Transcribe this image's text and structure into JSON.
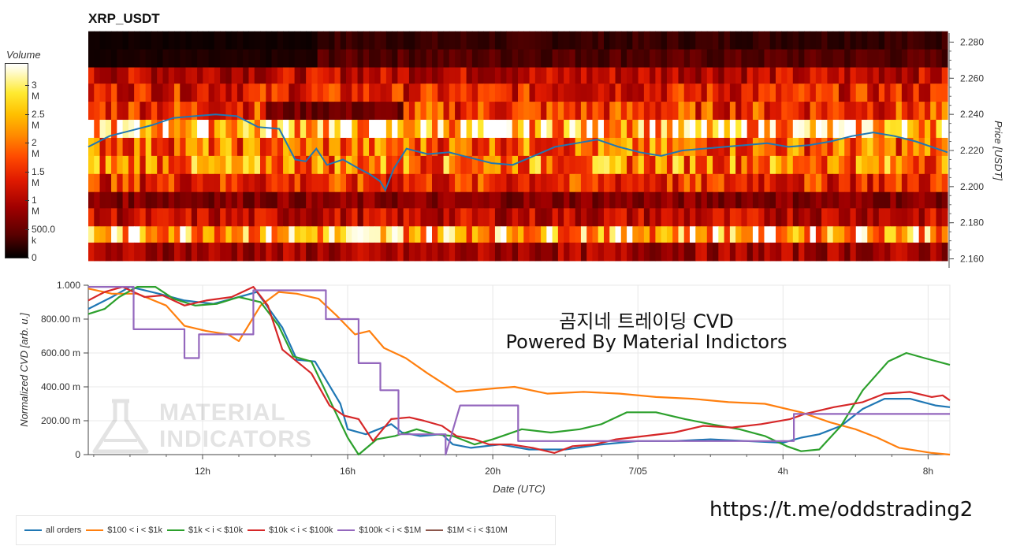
{
  "page": {
    "title": "XRP_USDT",
    "annotation_line1": "곰지네 트레이딩 CVD",
    "annotation_line2": "Powered By Material Indictors",
    "url": "https://t.me/oddstrading2",
    "watermark_line1": "MATERIAL",
    "watermark_line2": "INDICATORS"
  },
  "colorbar": {
    "title": "Volume",
    "ticks": [
      "3 M",
      "2.5 M",
      "2 M",
      "1.5 M",
      "1 M",
      "500.0 k",
      "0"
    ],
    "tick_values": [
      3000000,
      2500000,
      2000000,
      1500000,
      1000000,
      500000,
      0
    ],
    "max": 3400000
  },
  "chart_data": [
    {
      "type": "heatmap",
      "title": "XRP_USDT",
      "ylabel": "Price [USDT]",
      "yticks": [
        "2.280",
        "2.260",
        "2.240",
        "2.220",
        "2.200",
        "2.180",
        "2.160"
      ],
      "ylim": [
        2.155,
        2.285
      ],
      "price_levels": [
        2.281,
        2.271,
        2.261,
        2.252,
        2.242,
        2.232,
        2.222,
        2.212,
        2.202,
        2.192,
        2.183,
        2.173,
        2.164
      ],
      "row_profile_volume": [
        250000,
        400000,
        1100000,
        1400000,
        1600000,
        2700000,
        1900000,
        2100000,
        1500000,
        700000,
        1100000,
        2600000,
        900000
      ],
      "price_line": {
        "color": "#1f77b4",
        "points": [
          [
            0,
            2.222
          ],
          [
            2,
            2.228
          ],
          [
            4,
            2.231
          ],
          [
            6,
            2.234
          ],
          [
            8,
            2.238
          ],
          [
            10,
            2.239
          ],
          [
            12,
            2.24
          ],
          [
            14,
            2.239
          ],
          [
            16,
            2.233
          ],
          [
            18,
            2.232
          ],
          [
            19.5,
            2.215
          ],
          [
            20.5,
            2.214
          ],
          [
            21.5,
            2.221
          ],
          [
            22.5,
            2.212
          ],
          [
            24,
            2.215
          ],
          [
            25.5,
            2.21
          ],
          [
            26.5,
            2.207
          ],
          [
            27.5,
            2.203
          ],
          [
            28,
            2.198
          ],
          [
            28.8,
            2.21
          ],
          [
            30,
            2.221
          ],
          [
            32,
            2.218
          ],
          [
            34,
            2.219
          ],
          [
            36,
            2.216
          ],
          [
            38,
            2.213
          ],
          [
            40,
            2.212
          ],
          [
            42,
            2.217
          ],
          [
            44,
            2.222
          ],
          [
            46,
            2.224
          ],
          [
            48,
            2.226
          ],
          [
            50,
            2.222
          ],
          [
            52,
            2.219
          ],
          [
            54,
            2.217
          ],
          [
            56,
            2.22
          ],
          [
            58,
            2.221
          ],
          [
            60,
            2.222
          ],
          [
            62,
            2.223
          ],
          [
            64,
            2.224
          ],
          [
            66,
            2.222
          ],
          [
            68,
            2.223
          ],
          [
            70,
            2.225
          ],
          [
            72,
            2.228
          ],
          [
            74,
            2.23
          ],
          [
            76,
            2.228
          ],
          [
            78,
            2.225
          ],
          [
            80,
            2.221
          ],
          [
            81,
            2.219
          ]
        ]
      }
    },
    {
      "type": "line",
      "xlabel": "Date (UTC)",
      "ylabel": "Normalized CVD [arb. u.]",
      "xticks": [
        "12h",
        "16h",
        "20h",
        "7/05",
        "4h",
        "8h"
      ],
      "xtick_hours": [
        12,
        16,
        20,
        24,
        28,
        32
      ],
      "xlim_hours": [
        8.85,
        32.6
      ],
      "yticks": [
        "1.000",
        "800.00 m",
        "600.00 m",
        "400.00 m",
        "200.00 m",
        "0"
      ],
      "ytick_values": [
        1.0,
        0.8,
        0.6,
        0.4,
        0.2,
        0.0
      ],
      "ylim": [
        0,
        1
      ],
      "series": [
        {
          "name": "all orders",
          "color": "#1f77b4",
          "points": [
            [
              8.85,
              0.86
            ],
            [
              9.5,
              0.93
            ],
            [
              10,
              0.99
            ],
            [
              10.8,
              0.95
            ],
            [
              11.5,
              0.91
            ],
            [
              12.3,
              0.89
            ],
            [
              13,
              0.93
            ],
            [
              13.5,
              0.96
            ],
            [
              14.2,
              0.75
            ],
            [
              14.6,
              0.56
            ],
            [
              15.1,
              0.55
            ],
            [
              15.8,
              0.3
            ],
            [
              16,
              0.15
            ],
            [
              16.5,
              0.12
            ],
            [
              17.2,
              0.18
            ],
            [
              17.5,
              0.13
            ],
            [
              18,
              0.11
            ],
            [
              18.6,
              0.12
            ],
            [
              18.9,
              0.06
            ],
            [
              19.4,
              0.04
            ],
            [
              20.2,
              0.06
            ],
            [
              21,
              0.03
            ],
            [
              22,
              0.03
            ],
            [
              23,
              0.06
            ],
            [
              24,
              0.08
            ],
            [
              25,
              0.08
            ],
            [
              26,
              0.09
            ],
            [
              27,
              0.08
            ],
            [
              28,
              0.07
            ],
            [
              28.5,
              0.1
            ],
            [
              29,
              0.12
            ],
            [
              29.6,
              0.17
            ],
            [
              30.2,
              0.27
            ],
            [
              30.8,
              0.33
            ],
            [
              31.5,
              0.33
            ],
            [
              32.2,
              0.29
            ],
            [
              32.6,
              0.28
            ]
          ]
        },
        {
          "name": "$100 < i < $1k",
          "color": "#ff7f0e",
          "points": [
            [
              8.85,
              0.98
            ],
            [
              9.5,
              0.95
            ],
            [
              10.2,
              0.95
            ],
            [
              11,
              0.88
            ],
            [
              11.5,
              0.76
            ],
            [
              12.1,
              0.73
            ],
            [
              12.7,
              0.71
            ],
            [
              13,
              0.67
            ],
            [
              13.6,
              0.88
            ],
            [
              14.1,
              0.96
            ],
            [
              14.6,
              0.95
            ],
            [
              15.2,
              0.92
            ],
            [
              15.7,
              0.82
            ],
            [
              16.2,
              0.71
            ],
            [
              16.6,
              0.73
            ],
            [
              17,
              0.63
            ],
            [
              17.6,
              0.57
            ],
            [
              18.2,
              0.48
            ],
            [
              19,
              0.37
            ],
            [
              20,
              0.39
            ],
            [
              20.6,
              0.4
            ],
            [
              21.5,
              0.36
            ],
            [
              22.5,
              0.37
            ],
            [
              23.5,
              0.36
            ],
            [
              24.5,
              0.34
            ],
            [
              25.5,
              0.33
            ],
            [
              26.5,
              0.31
            ],
            [
              27.5,
              0.3
            ],
            [
              28.5,
              0.25
            ],
            [
              29.3,
              0.19
            ],
            [
              30,
              0.15
            ],
            [
              30.6,
              0.1
            ],
            [
              31.2,
              0.04
            ],
            [
              32.1,
              0.01
            ],
            [
              32.6,
              0.0
            ]
          ]
        },
        {
          "name": "$1k < i < $10k",
          "color": "#2ca02c",
          "points": [
            [
              8.85,
              0.83
            ],
            [
              9.3,
              0.86
            ],
            [
              9.7,
              0.93
            ],
            [
              10.2,
              0.99
            ],
            [
              10.7,
              0.99
            ],
            [
              11.2,
              0.92
            ],
            [
              11.8,
              0.88
            ],
            [
              12.4,
              0.89
            ],
            [
              13,
              0.93
            ],
            [
              13.6,
              0.9
            ],
            [
              14.1,
              0.76
            ],
            [
              14.5,
              0.58
            ],
            [
              15,
              0.55
            ],
            [
              15.6,
              0.28
            ],
            [
              16,
              0.1
            ],
            [
              16.3,
              0.0
            ],
            [
              16.8,
              0.09
            ],
            [
              17.3,
              0.11
            ],
            [
              17.9,
              0.15
            ],
            [
              18.4,
              0.12
            ],
            [
              18.9,
              0.11
            ],
            [
              19.5,
              0.06
            ],
            [
              20,
              0.09
            ],
            [
              20.8,
              0.15
            ],
            [
              21.6,
              0.13
            ],
            [
              22.4,
              0.15
            ],
            [
              23,
              0.18
            ],
            [
              23.7,
              0.25
            ],
            [
              24.5,
              0.25
            ],
            [
              25.3,
              0.21
            ],
            [
              26,
              0.18
            ],
            [
              26.8,
              0.15
            ],
            [
              27.5,
              0.11
            ],
            [
              28.1,
              0.05
            ],
            [
              28.5,
              0.02
            ],
            [
              29,
              0.03
            ],
            [
              29.6,
              0.17
            ],
            [
              30.2,
              0.38
            ],
            [
              30.9,
              0.55
            ],
            [
              31.4,
              0.6
            ],
            [
              31.9,
              0.57
            ],
            [
              32.6,
              0.53
            ]
          ]
        },
        {
          "name": "$10k < i < $100k",
          "color": "#d62728",
          "points": [
            [
              8.85,
              0.91
            ],
            [
              9.3,
              0.96
            ],
            [
              9.8,
              0.99
            ],
            [
              10.4,
              0.93
            ],
            [
              10.9,
              0.94
            ],
            [
              11.5,
              0.88
            ],
            [
              12.1,
              0.91
            ],
            [
              12.8,
              0.93
            ],
            [
              13.4,
              0.99
            ],
            [
              13.8,
              0.88
            ],
            [
              14.2,
              0.62
            ],
            [
              14.6,
              0.55
            ],
            [
              15,
              0.48
            ],
            [
              15.5,
              0.29
            ],
            [
              15.9,
              0.23
            ],
            [
              16.3,
              0.21
            ],
            [
              16.7,
              0.08
            ],
            [
              17.2,
              0.21
            ],
            [
              17.7,
              0.22
            ],
            [
              18.1,
              0.2
            ],
            [
              18.6,
              0.17
            ],
            [
              19,
              0.11
            ],
            [
              19.5,
              0.09
            ],
            [
              19.9,
              0.06
            ],
            [
              20.5,
              0.06
            ],
            [
              21.1,
              0.04
            ],
            [
              21.7,
              0.01
            ],
            [
              22.2,
              0.05
            ],
            [
              22.8,
              0.06
            ],
            [
              23.4,
              0.09
            ],
            [
              24.2,
              0.11
            ],
            [
              25,
              0.13
            ],
            [
              25.8,
              0.17
            ],
            [
              26.6,
              0.16
            ],
            [
              27.4,
              0.18
            ],
            [
              28.2,
              0.21
            ],
            [
              28.6,
              0.24
            ],
            [
              29.4,
              0.28
            ],
            [
              30.2,
              0.31
            ],
            [
              30.8,
              0.36
            ],
            [
              31.5,
              0.37
            ],
            [
              32.1,
              0.34
            ],
            [
              32.4,
              0.35
            ],
            [
              32.6,
              0.32
            ]
          ]
        },
        {
          "name": "$100k < i < $1M",
          "color": "#9467bd",
          "points": [
            [
              8.85,
              0.99
            ],
            [
              10.1,
              0.99
            ],
            [
              10.1,
              0.74
            ],
            [
              11.5,
              0.74
            ],
            [
              11.5,
              0.57
            ],
            [
              11.9,
              0.57
            ],
            [
              11.9,
              0.71
            ],
            [
              13.4,
              0.71
            ],
            [
              13.4,
              0.97
            ],
            [
              15.4,
              0.97
            ],
            [
              15.4,
              0.8
            ],
            [
              16.3,
              0.8
            ],
            [
              16.3,
              0.54
            ],
            [
              16.9,
              0.54
            ],
            [
              16.9,
              0.38
            ],
            [
              17.4,
              0.38
            ],
            [
              17.4,
              0.12
            ],
            [
              18.7,
              0.12
            ],
            [
              18.7,
              0.0
            ],
            [
              19.1,
              0.29
            ],
            [
              20.7,
              0.29
            ],
            [
              20.7,
              0.08
            ],
            [
              28.3,
              0.08
            ],
            [
              28.3,
              0.24
            ],
            [
              32.6,
              0.24
            ]
          ]
        },
        {
          "name": "$1M < i < $10M",
          "color": "#8c564b",
          "points": []
        }
      ]
    }
  ]
}
